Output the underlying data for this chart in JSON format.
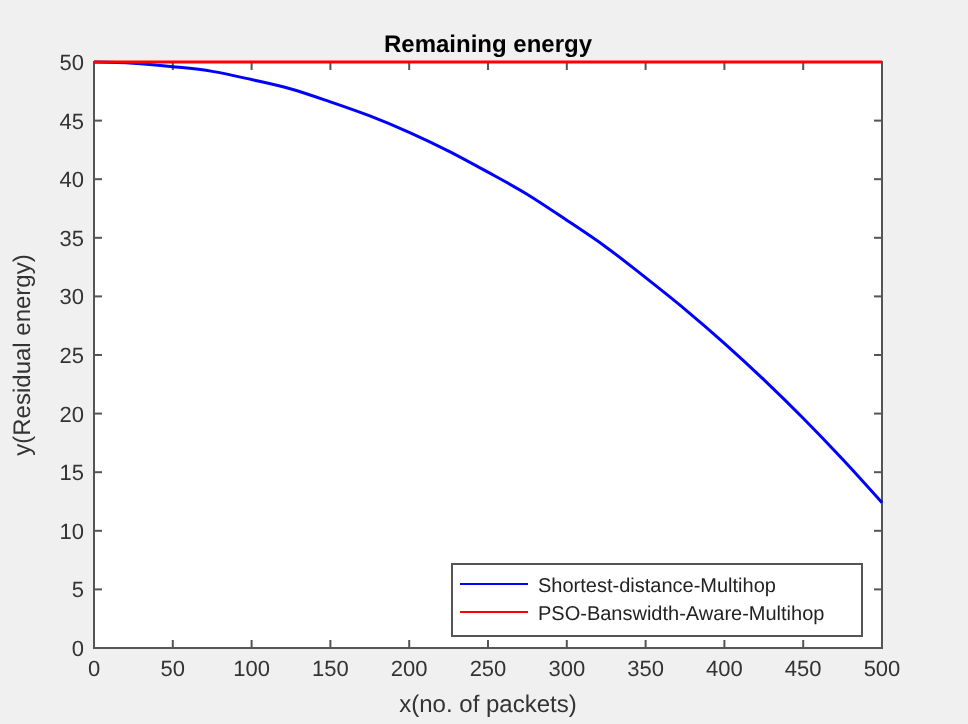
{
  "chart_data": {
    "type": "line",
    "title": "Remaining energy",
    "xlabel": "x(no. of packets)",
    "ylabel": "y(Residual energy)",
    "xlim": [
      0,
      500
    ],
    "xticks": [
      0,
      50,
      100,
      150,
      200,
      250,
      300,
      350,
      400,
      450,
      500
    ],
    "ylim": [
      0,
      50
    ],
    "yticks": [
      0,
      5,
      10,
      15,
      20,
      25,
      30,
      35,
      40,
      45,
      50
    ],
    "grid": false,
    "legend": "bottom right",
    "line_style": "solid",
    "series": [
      {
        "name": "Shortest-distance-Multihop",
        "color": "#0000ff",
        "x": [
          0,
          25,
          50,
          75,
          100,
          125,
          150,
          175,
          200,
          225,
          250,
          275,
          300,
          325,
          350,
          375,
          400,
          425,
          450,
          475,
          500
        ],
        "values": [
          50,
          49.9,
          49.6,
          49.2,
          48.5,
          47.7,
          46.6,
          45.4,
          44,
          42.4,
          40.6,
          38.7,
          36.5,
          34.2,
          31.6,
          28.9,
          26,
          22.9,
          19.6,
          16.1,
          12.4
        ]
      },
      {
        "name": "PSO-Banswidth-Aware-Multihop",
        "color": "#ff0000",
        "x": [
          0,
          500
        ],
        "values": [
          50,
          50
        ]
      }
    ]
  }
}
